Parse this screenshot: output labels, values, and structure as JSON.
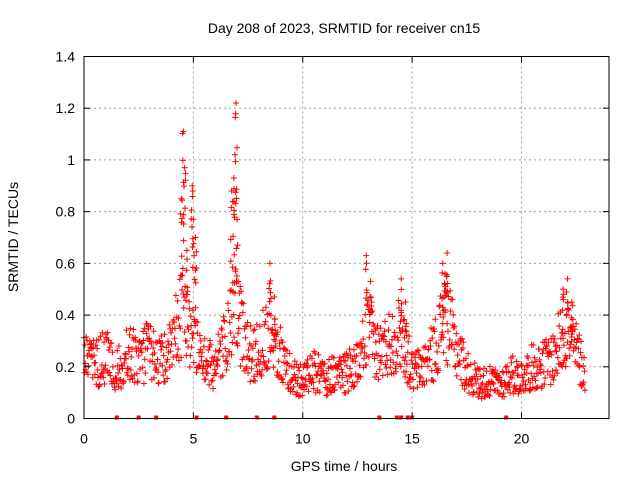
{
  "chart_data": {
    "type": "scatter",
    "title": "Day 208 of 2023, SRMTID for receiver cn15",
    "xlabel": "GPS time / hours",
    "ylabel": "SRMTID / TECUs",
    "xlim": [
      0,
      24
    ],
    "ylim": [
      0,
      1.4
    ],
    "xticks": [
      0,
      5,
      10,
      15,
      20
    ],
    "yticks": [
      0,
      0.2,
      0.4,
      0.6,
      0.8,
      1,
      1.2,
      1.4
    ],
    "xtick_labels": [
      "0",
      "5",
      "10",
      "15",
      "20"
    ],
    "ytick_labels": [
      "0",
      "0.2",
      "0.4",
      "0.6",
      "0.8",
      "1",
      "1.2",
      "1.4"
    ],
    "grid": true,
    "marker": "+",
    "color": "#ff0000",
    "series": [
      {
        "name": "SRMTID",
        "profile": [
          [
            0.0,
            0.22
          ],
          [
            0.5,
            0.21
          ],
          [
            1.0,
            0.24
          ],
          [
            1.5,
            0.18
          ],
          [
            2.0,
            0.26
          ],
          [
            2.5,
            0.22
          ],
          [
            3.0,
            0.27
          ],
          [
            3.5,
            0.22
          ],
          [
            4.0,
            0.26
          ],
          [
            4.5,
            0.45
          ],
          [
            5.0,
            0.32
          ],
          [
            5.5,
            0.22
          ],
          [
            6.0,
            0.2
          ],
          [
            6.5,
            0.3
          ],
          [
            7.0,
            0.42
          ],
          [
            7.5,
            0.25
          ],
          [
            8.0,
            0.26
          ],
          [
            8.5,
            0.36
          ],
          [
            9.0,
            0.24
          ],
          [
            9.5,
            0.16
          ],
          [
            10.0,
            0.15
          ],
          [
            10.5,
            0.18
          ],
          [
            11.0,
            0.16
          ],
          [
            11.5,
            0.17
          ],
          [
            12.0,
            0.18
          ],
          [
            12.5,
            0.2
          ],
          [
            13.0,
            0.34
          ],
          [
            13.5,
            0.25
          ],
          [
            14.0,
            0.3
          ],
          [
            14.5,
            0.33
          ],
          [
            15.0,
            0.18
          ],
          [
            15.5,
            0.2
          ],
          [
            16.0,
            0.26
          ],
          [
            16.5,
            0.4
          ],
          [
            17.0,
            0.28
          ],
          [
            17.5,
            0.18
          ],
          [
            18.0,
            0.14
          ],
          [
            18.5,
            0.14
          ],
          [
            19.0,
            0.13
          ],
          [
            19.5,
            0.17
          ],
          [
            20.0,
            0.16
          ],
          [
            20.5,
            0.2
          ],
          [
            21.0,
            0.21
          ],
          [
            21.5,
            0.24
          ],
          [
            22.0,
            0.35
          ],
          [
            22.5,
            0.26
          ],
          [
            22.9,
            0.18
          ]
        ],
        "peaks": [
          [
            4.45,
            0.85
          ],
          [
            4.55,
            1.11
          ],
          [
            4.6,
            0.97
          ],
          [
            4.7,
            0.65
          ],
          [
            4.95,
            0.9
          ],
          [
            5.0,
            0.77
          ],
          [
            5.1,
            0.7
          ],
          [
            6.75,
            0.88
          ],
          [
            6.85,
            0.93
          ],
          [
            6.9,
            1.02
          ],
          [
            6.95,
            1.22
          ],
          [
            7.0,
            0.77
          ],
          [
            8.5,
            0.6
          ],
          [
            8.7,
            0.47
          ],
          [
            12.9,
            0.63
          ],
          [
            13.1,
            0.53
          ],
          [
            14.5,
            0.54
          ],
          [
            14.7,
            0.45
          ],
          [
            16.4,
            0.6
          ],
          [
            16.6,
            0.64
          ],
          [
            16.5,
            0.56
          ],
          [
            21.9,
            0.5
          ],
          [
            22.1,
            0.54
          ],
          [
            22.3,
            0.45
          ]
        ]
      }
    ],
    "gap_markers_x": [
      1.5,
      2.5,
      3.3,
      5.15,
      6.5,
      7.9,
      8.7,
      13.5,
      14.3,
      14.5,
      14.8,
      15.0,
      19.3
    ]
  }
}
